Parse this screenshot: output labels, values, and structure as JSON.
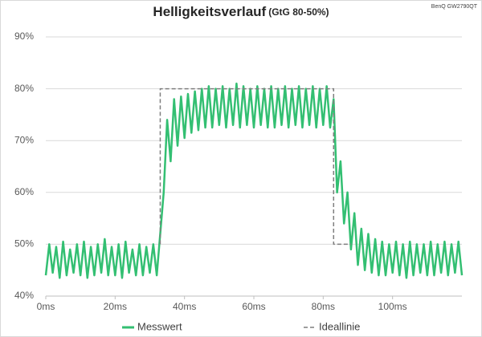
{
  "chart_data": {
    "type": "line",
    "title": "Helligkeitsverlauf",
    "subtitle": "(GtG 80-50%)",
    "annotation": "BenQ GW2790QT",
    "xlim": [
      0,
      120
    ],
    "xticks": [
      {
        "value": 0,
        "label": "0ms"
      },
      {
        "value": 20,
        "label": "20ms"
      },
      {
        "value": 40,
        "label": "40ms"
      },
      {
        "value": 60,
        "label": "60ms"
      },
      {
        "value": 80,
        "label": "80ms"
      },
      {
        "value": 100,
        "label": "100ms"
      }
    ],
    "ylim": [
      40,
      90
    ],
    "yticks": [
      {
        "value": 40,
        "label": "40%"
      },
      {
        "value": 50,
        "label": "50%"
      },
      {
        "value": 60,
        "label": "60%"
      },
      {
        "value": 70,
        "label": "70%"
      },
      {
        "value": 80,
        "label": "80%"
      },
      {
        "value": 90,
        "label": "90%"
      }
    ],
    "grid": true,
    "legend": "bottom",
    "series": [
      {
        "name": "Messwert",
        "color": "#33bf72",
        "dash": false,
        "x": [
          0,
          1,
          2,
          3,
          4,
          5,
          6,
          7,
          8,
          9,
          10,
          11,
          12,
          13,
          14,
          15,
          16,
          17,
          18,
          19,
          20,
          21,
          22,
          23,
          24,
          25,
          26,
          27,
          28,
          29,
          30,
          31,
          32,
          33,
          34,
          35,
          36,
          37,
          38,
          39,
          40,
          41,
          42,
          43,
          44,
          45,
          46,
          47,
          48,
          49,
          50,
          51,
          52,
          53,
          54,
          55,
          56,
          57,
          58,
          59,
          60,
          61,
          62,
          63,
          64,
          65,
          66,
          67,
          68,
          69,
          70,
          71,
          72,
          73,
          74,
          75,
          76,
          77,
          78,
          79,
          80,
          81,
          82,
          83,
          84,
          85,
          86,
          87,
          88,
          89,
          90,
          91,
          92,
          93,
          94,
          95,
          96,
          97,
          98,
          99,
          100,
          101,
          102,
          103,
          104,
          105,
          106,
          107,
          108,
          109,
          110,
          111,
          112,
          113,
          114,
          115,
          116,
          117,
          118,
          119,
          120
        ],
        "values": [
          44,
          50,
          44.5,
          49.5,
          43.5,
          50.5,
          44,
          49,
          44.5,
          50,
          44,
          50.5,
          43.5,
          49.5,
          44,
          50,
          44.5,
          51,
          44,
          49.5,
          44,
          50,
          43.5,
          50.5,
          44.5,
          49,
          44,
          50,
          44,
          49.5,
          44.5,
          50,
          44,
          52,
          60,
          74,
          66,
          78,
          69,
          78.5,
          70.5,
          79,
          71.5,
          79.5,
          72,
          80,
          72.5,
          80.5,
          72.5,
          80,
          73,
          80.5,
          72.5,
          80,
          73,
          81,
          72.5,
          80.5,
          73,
          80,
          72.5,
          80.5,
          73,
          80,
          72.5,
          80.5,
          72.5,
          80,
          73,
          80.5,
          72.5,
          80,
          73,
          80.5,
          72.5,
          80,
          73,
          80.5,
          72.5,
          80,
          73,
          80.5,
          72.5,
          78,
          60,
          66,
          54,
          60,
          49,
          56,
          46,
          53,
          45,
          52,
          44.5,
          51,
          44,
          50.5,
          44,
          50,
          44.5,
          50.5,
          44,
          50,
          43.5,
          50.5,
          44,
          50,
          44.5,
          50,
          44,
          50.5,
          44,
          50,
          44.5,
          50.5,
          44,
          50,
          44.5,
          50.5,
          44
        ]
      },
      {
        "name": "Ideallinie",
        "color": "#7f7f7f",
        "dash": true,
        "x": [
          33,
          33,
          83,
          83,
          88
        ],
        "values": [
          50,
          80,
          80,
          50,
          50
        ]
      }
    ]
  }
}
